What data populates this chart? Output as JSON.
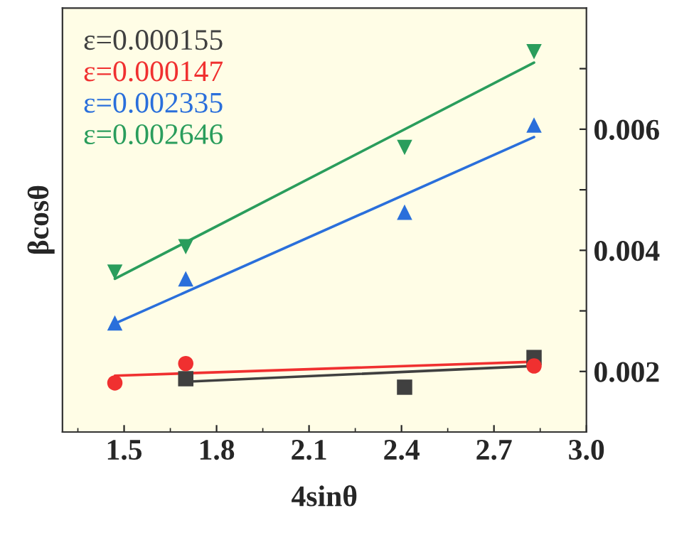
{
  "chart_data": {
    "type": "scatter",
    "xlabel": "4sinθ",
    "ylabel": "βcosθ",
    "xlim": [
      1.3,
      3.0
    ],
    "xticks": [
      1.5,
      1.8,
      2.1,
      2.4,
      2.7,
      {
        "value": 3.0,
        "label": "3.0"
      }
    ],
    "ylim": [
      0.001,
      0.008
    ],
    "yticks": [
      {
        "value": 0.002,
        "label": "0.002"
      },
      {
        "value": 0.003,
        "label": null
      },
      {
        "value": 0.004,
        "label": "0.004"
      },
      {
        "value": 0.005,
        "label": null
      },
      {
        "value": 0.006,
        "label": "0.006"
      },
      {
        "value": 0.007,
        "label": null
      }
    ],
    "tick_labels": "xy",
    "legend": "top left",
    "grid": false,
    "series": [
      {
        "name": "ε=0.000155",
        "marker": "square",
        "color": "#404040",
        "x": [
          1.7,
          2.41,
          2.83
        ],
        "values": [
          0.00188,
          0.00174,
          0.00223
        ]
      },
      {
        "name": "ε=0.000147",
        "marker": "circle",
        "color": "#f03030",
        "x": [
          1.47,
          1.7,
          2.83
        ],
        "values": [
          0.00181,
          0.00213,
          0.00209
        ]
      },
      {
        "name": "ε=0.002335",
        "marker": "triangle",
        "color": "#2a6fdb",
        "x": [
          1.47,
          1.7,
          2.41,
          2.83
        ],
        "values": [
          0.0028,
          0.00353,
          0.00463,
          0.00607
        ]
      },
      {
        "name": "ε=0.002646",
        "marker": "triangle_down",
        "color": "#2a9d5c",
        "x": [
          1.47,
          1.7,
          2.41,
          2.83
        ],
        "values": [
          0.00364,
          0.00406,
          0.0057,
          0.00728
        ]
      },
      {
        "type": "line",
        "marker": "none",
        "color": "#404040",
        "x": [
          1.7,
          2.83
        ],
        "values": [
          0.00183,
          0.00209
        ]
      },
      {
        "type": "line",
        "marker": "none",
        "color": "#f03030",
        "x": [
          1.47,
          2.83
        ],
        "values": [
          0.00193,
          0.00216
        ]
      },
      {
        "type": "line",
        "marker": "none",
        "color": "#2a6fdb",
        "x": [
          1.47,
          2.83
        ],
        "values": [
          0.00279,
          0.00587
        ]
      },
      {
        "type": "line",
        "marker": "none",
        "color": "#2a9d5c",
        "x": [
          1.47,
          2.83
        ],
        "values": [
          0.00353,
          0.0071
        ]
      }
    ]
  }
}
